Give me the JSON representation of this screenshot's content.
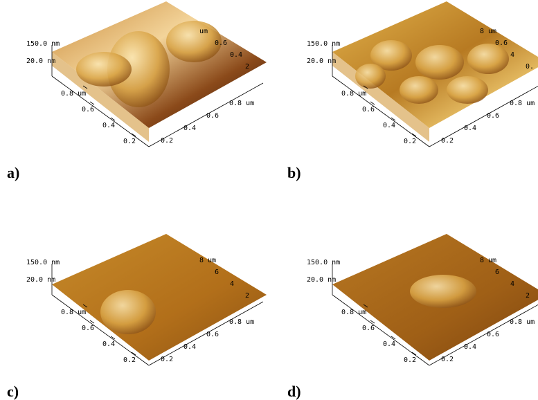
{
  "figure": {
    "panels": [
      {
        "label": "a)",
        "z_labels": [
          "150.0 nm",
          "20.0 nm"
        ],
        "left_ticks": [
          "0.8 um",
          "0.6",
          "0.4",
          "0.2"
        ],
        "right_ticks": [
          "0.2",
          "0.4",
          "0.6",
          "0.8 um"
        ],
        "back_ticks": [
          "um",
          "0.6",
          "0.4",
          "2"
        ]
      },
      {
        "label": "b)",
        "z_labels": [
          "150.0 nm",
          "20.0 nm"
        ],
        "left_ticks": [
          "0.8 um",
          "0.6",
          "0.4",
          "0.2"
        ],
        "right_ticks": [
          "0.2",
          "0.4",
          "0.6",
          "0.8 um"
        ],
        "back_ticks": [
          "8 um",
          "0.6",
          "4",
          "0."
        ]
      },
      {
        "label": "c)",
        "z_labels": [
          "150.0 nm",
          "20.0 nm"
        ],
        "left_ticks": [
          "0.8 um",
          "0.6",
          "0.4",
          "0.2"
        ],
        "right_ticks": [
          "0.2",
          "0.4",
          "0.6",
          "0.8 um"
        ],
        "back_ticks": [
          "8 um",
          "6",
          "4",
          "2"
        ]
      },
      {
        "label": "d)",
        "z_labels": [
          "150.0 nm",
          "20.0 nm"
        ],
        "left_ticks": [
          "0.8 um",
          "0.6",
          "0.4",
          "0.2"
        ],
        "right_ticks": [
          "0.2",
          "0.4",
          "0.6",
          "0.8 um"
        ],
        "back_ticks": [
          "8 um",
          "6",
          "4",
          "2"
        ]
      }
    ]
  }
}
